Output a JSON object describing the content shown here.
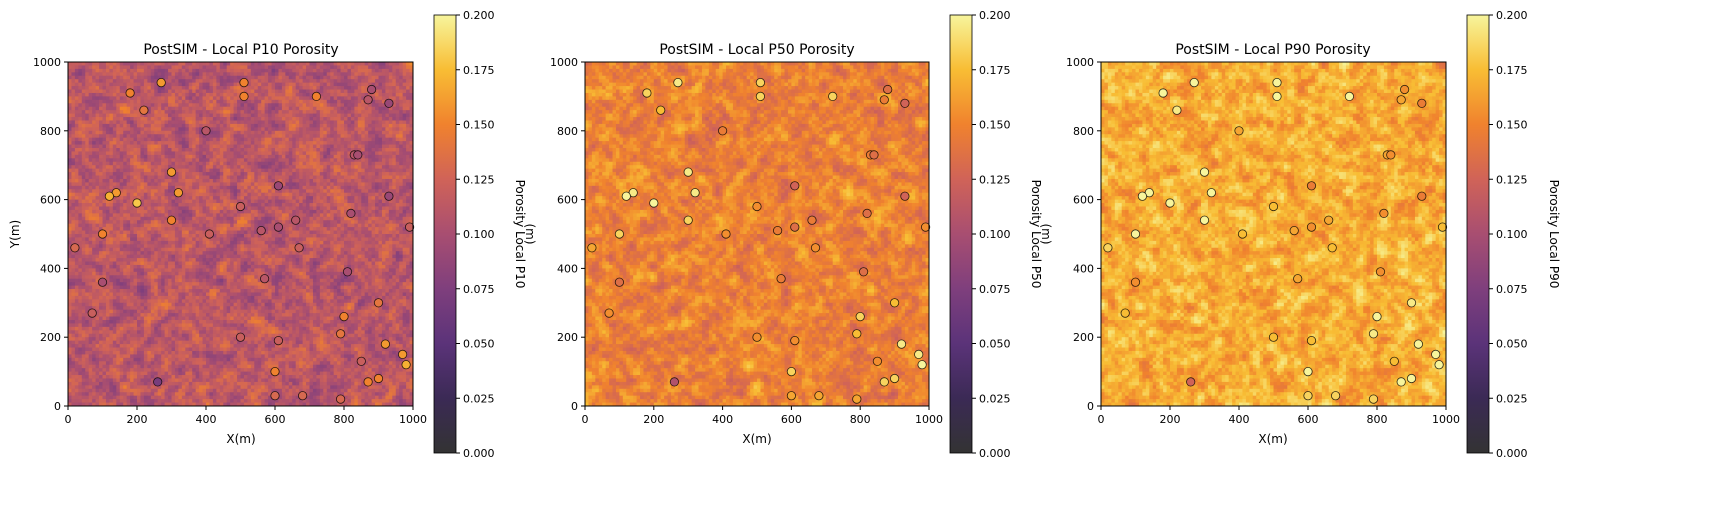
{
  "chart_data": [
    {
      "type": "heatmap",
      "title": "PostSIM - Local P10 Porosity",
      "xlabel": "X(m)",
      "ylabel": "Y(m)",
      "xlim": [
        0,
        1000
      ],
      "ylim": [
        0,
        1000
      ],
      "xticks": [
        0,
        200,
        400,
        600,
        800,
        1000
      ],
      "yticks": [
        0,
        200,
        400,
        600,
        800,
        1000
      ],
      "colorbar": {
        "label": "Porosity Local P10",
        "extra_label": "(m)",
        "range": [
          0.0,
          0.2
        ],
        "ticks": [
          "0.000",
          "0.025",
          "0.050",
          "0.075",
          "0.100",
          "0.125",
          "0.150",
          "0.175",
          "0.200"
        ]
      },
      "colormap": "inferno",
      "grid_cells": 100,
      "field": {
        "mean": 0.112,
        "amplitude": 0.028,
        "seed": 11
      }
    },
    {
      "type": "heatmap",
      "title": "PostSIM - Local P50 Porosity",
      "xlabel": "X(m)",
      "ylabel": "",
      "xlim": [
        0,
        1000
      ],
      "ylim": [
        0,
        1000
      ],
      "xticks": [
        0,
        200,
        400,
        600,
        800,
        1000
      ],
      "yticks": [
        0,
        200,
        400,
        600,
        800,
        1000
      ],
      "colorbar": {
        "label": "Porosity Local P50",
        "extra_label": "(m)",
        "range": [
          0.0,
          0.2
        ],
        "ticks": [
          "0.000",
          "0.025",
          "0.050",
          "0.075",
          "0.100",
          "0.125",
          "0.150",
          "0.175",
          "0.200"
        ]
      },
      "colormap": "inferno",
      "grid_cells": 100,
      "field": {
        "mean": 0.148,
        "amplitude": 0.022,
        "seed": 23
      }
    },
    {
      "type": "heatmap",
      "title": "PostSIM - Local P90 Porosity",
      "xlabel": "X(m)",
      "ylabel": "",
      "xlim": [
        0,
        1000
      ],
      "ylim": [
        0,
        1000
      ],
      "xticks": [
        0,
        200,
        400,
        600,
        800,
        1000
      ],
      "yticks": [
        0,
        200,
        400,
        600,
        800,
        1000
      ],
      "colorbar": {
        "label": "Porosity Local P90",
        "extra_label": "",
        "range": [
          0.0,
          0.2
        ],
        "ticks": [
          "0.000",
          "0.025",
          "0.050",
          "0.075",
          "0.100",
          "0.125",
          "0.150",
          "0.175",
          "0.200"
        ]
      },
      "colormap": "inferno",
      "grid_cells": 100,
      "field": {
        "mean": 0.168,
        "amplitude": 0.022,
        "seed": 37
      }
    }
  ],
  "wells": [
    {
      "x": 270,
      "y": 940,
      "v": 0.16
    },
    {
      "x": 510,
      "y": 940,
      "v": 0.15
    },
    {
      "x": 180,
      "y": 910,
      "v": 0.15
    },
    {
      "x": 510,
      "y": 900,
      "v": 0.15
    },
    {
      "x": 720,
      "y": 900,
      "v": 0.15
    },
    {
      "x": 880,
      "y": 920,
      "v": 0.1
    },
    {
      "x": 870,
      "y": 890,
      "v": 0.11
    },
    {
      "x": 930,
      "y": 880,
      "v": 0.09
    },
    {
      "x": 220,
      "y": 860,
      "v": 0.14
    },
    {
      "x": 400,
      "y": 800,
      "v": 0.11
    },
    {
      "x": 830,
      "y": 730,
      "v": 0.11
    },
    {
      "x": 840,
      "y": 730,
      "v": 0.1
    },
    {
      "x": 300,
      "y": 680,
      "v": 0.16
    },
    {
      "x": 610,
      "y": 640,
      "v": 0.09
    },
    {
      "x": 140,
      "y": 620,
      "v": 0.16
    },
    {
      "x": 320,
      "y": 620,
      "v": 0.16
    },
    {
      "x": 120,
      "y": 610,
      "v": 0.17
    },
    {
      "x": 930,
      "y": 610,
      "v": 0.09
    },
    {
      "x": 200,
      "y": 590,
      "v": 0.18
    },
    {
      "x": 500,
      "y": 580,
      "v": 0.12
    },
    {
      "x": 820,
      "y": 560,
      "v": 0.1
    },
    {
      "x": 300,
      "y": 540,
      "v": 0.15
    },
    {
      "x": 660,
      "y": 540,
      "v": 0.11
    },
    {
      "x": 610,
      "y": 520,
      "v": 0.1
    },
    {
      "x": 990,
      "y": 520,
      "v": 0.12
    },
    {
      "x": 560,
      "y": 510,
      "v": 0.11
    },
    {
      "x": 100,
      "y": 500,
      "v": 0.15
    },
    {
      "x": 410,
      "y": 500,
      "v": 0.12
    },
    {
      "x": 20,
      "y": 460,
      "v": 0.13
    },
    {
      "x": 670,
      "y": 460,
      "v": 0.12
    },
    {
      "x": 810,
      "y": 390,
      "v": 0.1
    },
    {
      "x": 100,
      "y": 360,
      "v": 0.1
    },
    {
      "x": 570,
      "y": 370,
      "v": 0.11
    },
    {
      "x": 900,
      "y": 300,
      "v": 0.14
    },
    {
      "x": 70,
      "y": 270,
      "v": 0.12
    },
    {
      "x": 800,
      "y": 260,
      "v": 0.15
    },
    {
      "x": 500,
      "y": 200,
      "v": 0.12
    },
    {
      "x": 790,
      "y": 210,
      "v": 0.14
    },
    {
      "x": 610,
      "y": 190,
      "v": 0.12
    },
    {
      "x": 920,
      "y": 180,
      "v": 0.16
    },
    {
      "x": 970,
      "y": 150,
      "v": 0.16
    },
    {
      "x": 850,
      "y": 130,
      "v": 0.12
    },
    {
      "x": 980,
      "y": 120,
      "v": 0.17
    },
    {
      "x": 600,
      "y": 100,
      "v": 0.15
    },
    {
      "x": 900,
      "y": 80,
      "v": 0.15
    },
    {
      "x": 260,
      "y": 70,
      "v": 0.07
    },
    {
      "x": 870,
      "y": 70,
      "v": 0.15
    },
    {
      "x": 600,
      "y": 30,
      "v": 0.13
    },
    {
      "x": 680,
      "y": 30,
      "v": 0.13
    },
    {
      "x": 790,
      "y": 20,
      "v": 0.13
    }
  ]
}
